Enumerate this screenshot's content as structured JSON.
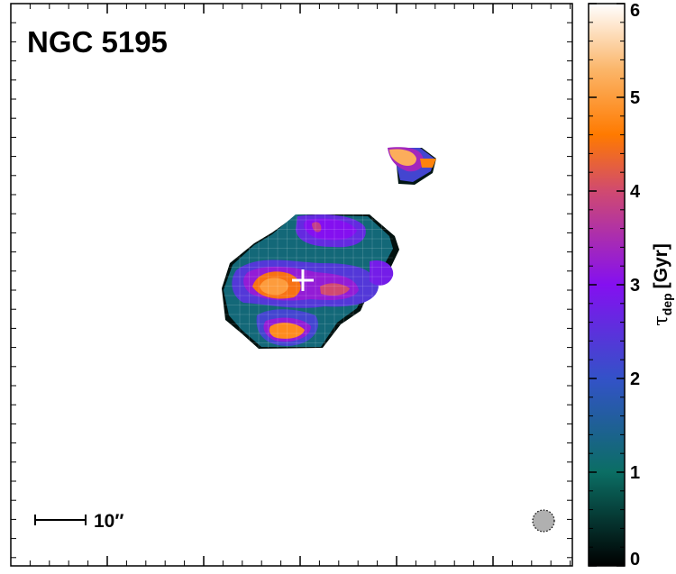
{
  "chart_data": {
    "type": "heatmap",
    "title": "NGC 5195",
    "colorbar": {
      "label": "τdep [Gyr]",
      "label_main": "τ",
      "label_sub": "dep",
      "label_unit": "[Gyr]",
      "range": [
        0,
        6
      ],
      "ticks": [
        "0",
        "1",
        "2",
        "3",
        "4",
        "5",
        "6"
      ],
      "stops": [
        {
          "value": 0,
          "color": "#000000"
        },
        {
          "value": 1,
          "color": "#0b6e64"
        },
        {
          "value": 2,
          "color": "#3352c8"
        },
        {
          "value": 3,
          "color": "#8410f0"
        },
        {
          "value": 4,
          "color": "#d04a70"
        },
        {
          "value": 4.6,
          "color": "#ff7a00"
        },
        {
          "value": 5.3,
          "color": "#fbb66a"
        },
        {
          "value": 6,
          "color": "#ffffff"
        }
      ]
    },
    "scale_bar_label": "10″",
    "beam": "gray-dotted-circle",
    "center_marker": "white-cross",
    "grid": false,
    "regions": [
      {
        "name": "main-body",
        "level": 1.2
      },
      {
        "name": "north-lobe",
        "level": 3.0
      },
      {
        "name": "south-west-knot",
        "level": 4.8
      },
      {
        "name": "central-knot",
        "level": 4.5
      },
      {
        "name": "east-knot",
        "level": 4.0
      },
      {
        "name": "north-east-clump",
        "level": 5.2
      }
    ]
  },
  "colors": {
    "background": "#ffffff",
    "axes": "#000000",
    "beam_fill": "#b0b0b0",
    "marker": "#ffffff"
  }
}
